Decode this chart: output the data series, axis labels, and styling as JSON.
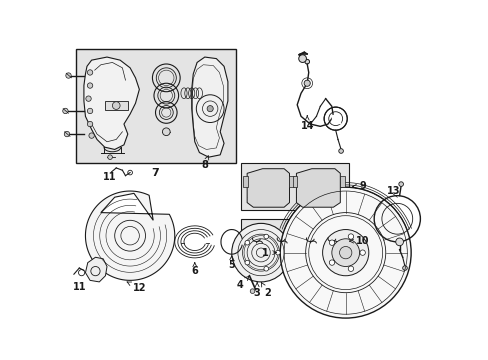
{
  "bg_color": "#ffffff",
  "line_color": "#1a1a1a",
  "box_fill": "#e4e4e4",
  "fig_width": 4.89,
  "fig_height": 3.6,
  "dpi": 100
}
